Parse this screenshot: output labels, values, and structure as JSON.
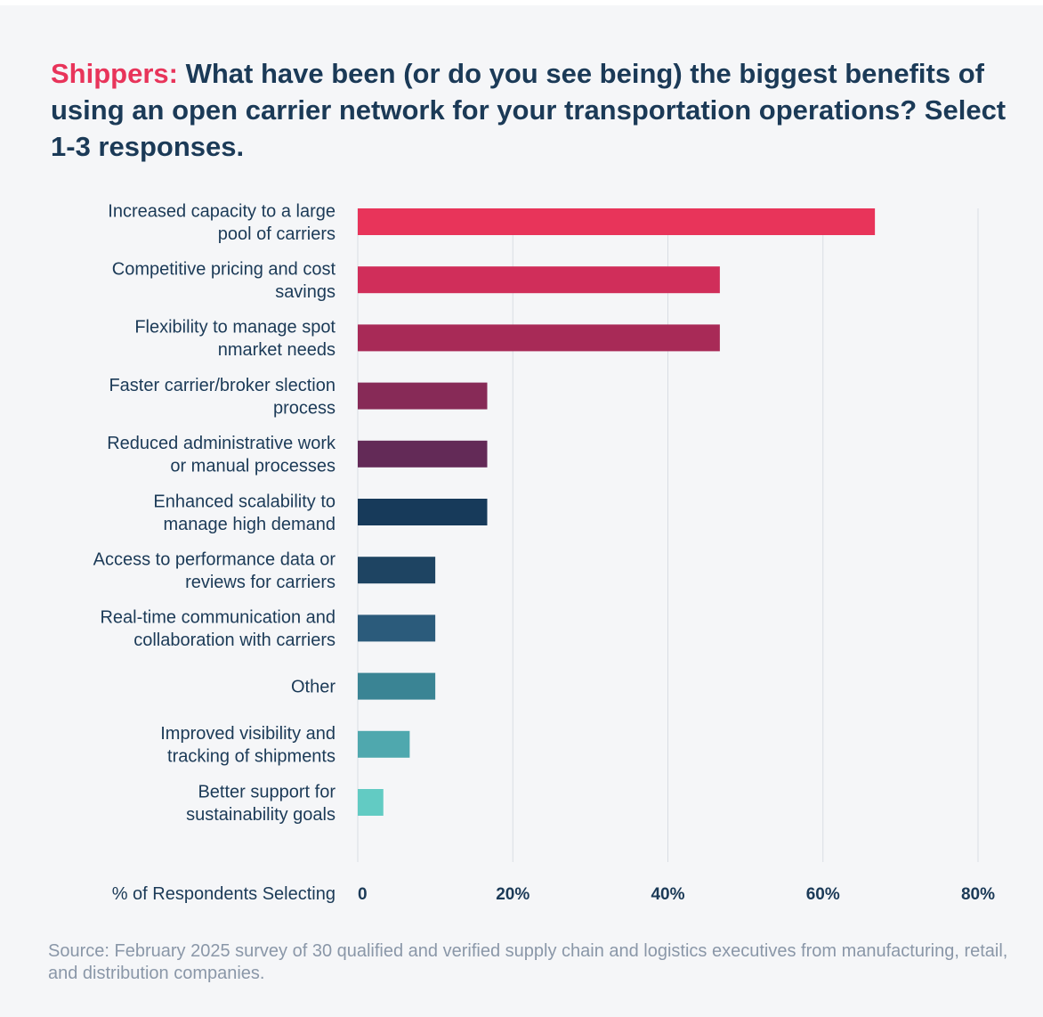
{
  "title": {
    "prefix": "Shippers:",
    "text": "What have been (or do you see being) the biggest benefits of using an open carrier network for your transportation operations? Select 1-3 responses."
  },
  "source": "Source: February 2025 survey of 30 qualified and verified supply chain and logistics executives from manufacturing, retail, and distribution companies.",
  "chart_data": {
    "type": "bar",
    "orientation": "horizontal",
    "categories": [
      [
        "Increased capacity to a large",
        "pool of carriers"
      ],
      [
        "Competitive pricing and cost",
        "savings"
      ],
      [
        "Flexibility to manage spot",
        "nmarket needs"
      ],
      [
        "Faster carrier/broker slection",
        "process"
      ],
      [
        "Reduced administrative work",
        "or manual processes"
      ],
      [
        "Enhanced scalability to",
        "manage high demand"
      ],
      [
        "Access to performance data or",
        "reviews for carriers"
      ],
      [
        "Real-time communication and",
        "collaboration with carriers"
      ],
      [
        "Other"
      ],
      [
        "Improved  visibility and",
        "tracking of shipments"
      ],
      [
        "Better support for",
        "sustainability goals"
      ]
    ],
    "values": [
      66.7,
      46.7,
      46.7,
      16.7,
      16.7,
      16.7,
      10,
      10,
      10,
      6.7,
      3.3
    ],
    "colors": [
      "#e8345a",
      "#d02e5a",
      "#a82a57",
      "#872a57",
      "#632a57",
      "#173a5a",
      "#1e4462",
      "#2b5b7b",
      "#3a8494",
      "#4fa8ae",
      "#62cbc3"
    ],
    "xlabel": "% of Respondents Selecting",
    "xticks": [
      "0",
      "20%",
      "40%",
      "60%",
      "80%"
    ],
    "xtick_values": [
      0,
      20,
      40,
      60,
      80
    ],
    "xlim": [
      0,
      80
    ],
    "grid": true
  }
}
